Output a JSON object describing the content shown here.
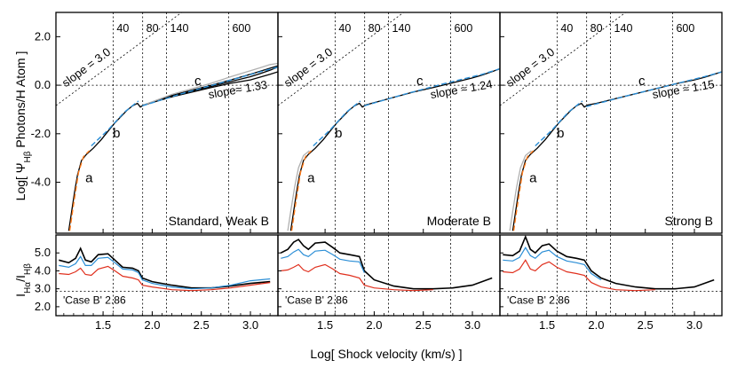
{
  "figure": {
    "ylabel_top": "Log[ Ψ",
    "ylabel_top_sub": "Hβ",
    "ylabel_top_tail": " Photons/H Atom ]",
    "ylabel_bottom": "I",
    "ylabel_bottom_sub1": "Hα",
    "ylabel_bottom_mid": "/I",
    "ylabel_bottom_sub2": "Hβ",
    "xlabel": "Log[ Shock velocity (km/s) ]"
  },
  "chart_data": [
    {
      "type": "line",
      "panel_title": "Standard, Weak B",
      "xlim": [
        1.02,
        3.28
      ],
      "ylim": [
        -6.1,
        3.0
      ],
      "yticks": [
        "2.0",
        "0.0",
        "-2.0",
        "-4.0"
      ],
      "xticks": [
        "1.5",
        "2.0",
        "2.5",
        "3.0"
      ],
      "velocity_markers": [
        {
          "log_v": 1.602,
          "label": "40"
        },
        {
          "log_v": 1.903,
          "label": "80"
        },
        {
          "log_v": 2.146,
          "label": "140"
        },
        {
          "log_v": 2.778,
          "label": "600"
        }
      ],
      "reference_line": {
        "label": "slope = 3.0",
        "slope": 3.0,
        "intercept": -3.9
      },
      "fit_labels": [
        "slope≈ 1.33"
      ],
      "segment_labels": [
        "a",
        "b",
        "c"
      ],
      "series": [
        {
          "name": "model",
          "color": "#000000",
          "x": [
            1.15,
            1.18,
            1.21,
            1.24,
            1.28,
            1.33,
            1.4,
            1.48,
            1.56,
            1.62,
            1.68,
            1.74,
            1.8,
            1.85,
            1.88,
            1.91,
            2.0,
            2.2,
            2.4,
            2.6,
            2.8,
            3.0,
            3.1,
            3.2,
            3.28
          ],
          "y": [
            -6.0,
            -5.2,
            -4.4,
            -3.7,
            -3.1,
            -2.85,
            -2.6,
            -2.25,
            -1.85,
            -1.55,
            -1.3,
            -1.05,
            -0.85,
            -0.75,
            -0.9,
            -0.82,
            -0.7,
            -0.45,
            -0.25,
            -0.05,
            0.15,
            0.35,
            0.48,
            0.62,
            0.75
          ]
        },
        {
          "name": "model (upper)",
          "color": "#000000",
          "x": [
            1.91,
            2.2,
            2.6,
            2.8,
            3.0,
            3.2,
            3.28
          ],
          "y": [
            -0.82,
            -0.42,
            0.0,
            0.22,
            0.45,
            0.7,
            0.8
          ]
        },
        {
          "name": "model (lower)",
          "color": "#000000",
          "x": [
            1.91,
            2.2,
            2.6,
            2.8,
            3.0,
            3.2,
            3.28
          ],
          "y": [
            -0.82,
            -0.48,
            -0.1,
            0.08,
            0.22,
            0.45,
            0.55
          ]
        },
        {
          "name": "gray",
          "color": "#b0b0b0",
          "x": [
            1.91,
            2.2,
            2.6,
            2.8,
            3.0,
            3.1,
            3.2,
            3.28
          ],
          "y": [
            -0.82,
            -0.38,
            0.08,
            0.35,
            0.6,
            0.72,
            0.85,
            0.9
          ]
        },
        {
          "name": "fit a",
          "color": "#ff7a1a",
          "dashed": true,
          "x": [
            1.16,
            1.2,
            1.25,
            1.3,
            1.36
          ],
          "y": [
            -6.0,
            -4.9,
            -3.6,
            -2.95,
            -2.7
          ]
        },
        {
          "name": "fit b",
          "color": "#2b8ed6",
          "dashed": true,
          "x": [
            1.38,
            1.55,
            1.72,
            1.86
          ],
          "y": [
            -2.5,
            -1.85,
            -1.1,
            -0.65
          ]
        },
        {
          "name": "fit c",
          "color": "#2b8ed6",
          "dashed": true,
          "x": [
            1.9,
            2.3,
            2.7,
            3.1,
            3.28
          ],
          "y": [
            -0.85,
            -0.35,
            0.1,
            0.55,
            0.75
          ]
        }
      ],
      "ratio": {
        "ylim": [
          1.5,
          6.0
        ],
        "yticks": [
          "5.0",
          "4.0",
          "3.0",
          "2.0"
        ],
        "case_b_value": 2.86,
        "case_b_label": "'Case B' 2.86",
        "series": [
          {
            "name": "ratio black",
            "color": "#000000",
            "x": [
              1.05,
              1.15,
              1.22,
              1.27,
              1.32,
              1.38,
              1.45,
              1.55,
              1.62,
              1.7,
              1.8,
              1.86,
              1.9,
              2.0,
              2.2,
              2.4,
              2.6,
              2.8,
              3.0,
              3.2
            ],
            "y": [
              4.6,
              4.45,
              4.7,
              5.25,
              4.6,
              4.5,
              4.9,
              4.95,
              4.6,
              4.2,
              4.15,
              4.0,
              3.6,
              3.4,
              3.2,
              3.05,
              3.05,
              3.15,
              3.3,
              3.4
            ]
          },
          {
            "name": "ratio blue",
            "color": "#2b8ed6",
            "x": [
              1.05,
              1.15,
              1.22,
              1.27,
              1.32,
              1.38,
              1.45,
              1.55,
              1.62,
              1.7,
              1.8,
              1.86,
              1.9,
              2.0,
              2.2,
              2.4,
              2.6,
              2.8,
              3.0,
              3.2
            ],
            "y": [
              4.3,
              4.2,
              4.4,
              4.8,
              4.3,
              4.3,
              4.7,
              4.75,
              4.45,
              4.1,
              4.05,
              3.9,
              3.5,
              3.3,
              3.1,
              3.0,
              3.05,
              3.2,
              3.45,
              3.55
            ]
          },
          {
            "name": "ratio red",
            "color": "#e0301e",
            "x": [
              1.05,
              1.15,
              1.22,
              1.27,
              1.32,
              1.38,
              1.45,
              1.55,
              1.62,
              1.7,
              1.8,
              1.86,
              1.9,
              2.0,
              2.2,
              2.4,
              2.6,
              2.8,
              3.0,
              3.2
            ],
            "y": [
              3.85,
              3.8,
              3.95,
              4.15,
              3.8,
              3.75,
              4.1,
              4.25,
              4.0,
              3.7,
              3.6,
              3.5,
              3.2,
              3.1,
              2.95,
              2.9,
              2.95,
              3.05,
              3.2,
              3.35
            ]
          }
        ]
      }
    },
    {
      "type": "line",
      "panel_title": "Moderate B",
      "xlim": [
        1.02,
        3.28
      ],
      "ylim": [
        -6.1,
        3.0
      ],
      "yticks": [],
      "xticks": [
        "1.5",
        "2.0",
        "2.5",
        "3.0"
      ],
      "velocity_markers": [
        {
          "log_v": 1.602,
          "label": "40"
        },
        {
          "log_v": 1.903,
          "label": "80"
        },
        {
          "log_v": 2.146,
          "label": "140"
        },
        {
          "log_v": 2.778,
          "label": "600"
        }
      ],
      "reference_line": {
        "label": "slope = 3.0",
        "slope": 3.0,
        "intercept": -3.9
      },
      "fit_labels": [
        "slope ≈ 1.24"
      ],
      "segment_labels": [
        "a",
        "b",
        "c"
      ],
      "series": [
        {
          "name": "model",
          "color": "#000000",
          "x": [
            1.15,
            1.18,
            1.21,
            1.24,
            1.28,
            1.33,
            1.4,
            1.48,
            1.56,
            1.62,
            1.68,
            1.74,
            1.8,
            1.85,
            1.88,
            1.91,
            2.0,
            2.2,
            2.4,
            2.6,
            2.8,
            3.0,
            3.1,
            3.2,
            3.28
          ],
          "y": [
            -6.0,
            -5.2,
            -4.4,
            -3.7,
            -3.1,
            -2.85,
            -2.6,
            -2.25,
            -1.85,
            -1.55,
            -1.3,
            -1.05,
            -0.85,
            -0.75,
            -0.9,
            -0.82,
            -0.72,
            -0.5,
            -0.28,
            -0.1,
            0.1,
            0.3,
            0.42,
            0.56,
            0.68
          ]
        },
        {
          "name": "gray",
          "color": "#b0b0b0",
          "x": [
            1.12,
            1.15,
            1.19,
            1.23,
            1.28,
            1.34
          ],
          "y": [
            -6.0,
            -5.2,
            -4.2,
            -3.4,
            -2.9,
            -2.7
          ]
        },
        {
          "name": "fit a",
          "color": "#ff7a1a",
          "dashed": true,
          "x": [
            1.16,
            1.2,
            1.25,
            1.3,
            1.36
          ],
          "y": [
            -6.0,
            -4.9,
            -3.6,
            -2.95,
            -2.7
          ]
        },
        {
          "name": "fit b",
          "color": "#2b8ed6",
          "dashed": true,
          "x": [
            1.38,
            1.55,
            1.72,
            1.86
          ],
          "y": [
            -2.5,
            -1.85,
            -1.1,
            -0.65
          ]
        },
        {
          "name": "fit c",
          "color": "#2b8ed6",
          "dashed": true,
          "x": [
            1.9,
            2.3,
            2.7,
            3.1,
            3.28
          ],
          "y": [
            -0.85,
            -0.38,
            0.05,
            0.45,
            0.68
          ]
        }
      ],
      "ratio": {
        "ylim": [
          1.5,
          6.0
        ],
        "yticks": [],
        "case_b_value": 2.86,
        "case_b_label": "'Case B' 2.86",
        "series": [
          {
            "name": "ratio black",
            "color": "#000000",
            "x": [
              1.05,
              1.12,
              1.18,
              1.23,
              1.28,
              1.33,
              1.4,
              1.5,
              1.58,
              1.65,
              1.75,
              1.85,
              1.9,
              2.0,
              2.2,
              2.4,
              2.6,
              2.8,
              3.0,
              3.2
            ],
            "y": [
              5.0,
              5.2,
              5.6,
              5.75,
              5.4,
              5.2,
              5.55,
              5.6,
              5.3,
              5.0,
              4.9,
              4.8,
              4.0,
              3.5,
              3.15,
              3.0,
              3.0,
              3.05,
              3.2,
              3.6
            ]
          },
          {
            "name": "ratio blue",
            "color": "#2b8ed6",
            "x": [
              1.05,
              1.12,
              1.18,
              1.23,
              1.28,
              1.33,
              1.4,
              1.5,
              1.58,
              1.65,
              1.75,
              1.85,
              1.9
            ],
            "y": [
              4.7,
              4.8,
              5.05,
              5.2,
              4.9,
              4.8,
              5.1,
              5.15,
              4.9,
              4.65,
              4.55,
              4.5,
              3.9
            ]
          },
          {
            "name": "ratio red",
            "color": "#e0301e",
            "x": [
              1.05,
              1.12,
              1.18,
              1.23,
              1.28,
              1.33,
              1.4,
              1.5,
              1.58,
              1.65,
              1.75,
              1.85,
              1.9,
              2.0,
              2.2,
              2.4,
              2.6
            ],
            "y": [
              4.0,
              4.05,
              4.2,
              4.35,
              4.05,
              3.95,
              4.2,
              4.35,
              4.1,
              3.85,
              3.75,
              3.6,
              3.2,
              3.05,
              2.95,
              2.9,
              2.95
            ]
          }
        ]
      }
    },
    {
      "type": "line",
      "panel_title": "Strong B",
      "xlim": [
        1.02,
        3.28
      ],
      "ylim": [
        -6.1,
        3.0
      ],
      "yticks": [],
      "xticks": [
        "1.5",
        "2.0",
        "2.5",
        "3.0"
      ],
      "velocity_markers": [
        {
          "log_v": 1.602,
          "label": "40"
        },
        {
          "log_v": 1.903,
          "label": "80"
        },
        {
          "log_v": 2.146,
          "label": "140"
        },
        {
          "log_v": 2.778,
          "label": "600"
        }
      ],
      "reference_line": {
        "label": "slope = 3.0",
        "slope": 3.0,
        "intercept": -3.9
      },
      "fit_labels": [
        "slope ≈ 1.15"
      ],
      "segment_labels": [
        "a",
        "b",
        "c"
      ],
      "series": [
        {
          "name": "model",
          "color": "#000000",
          "x": [
            1.15,
            1.18,
            1.21,
            1.24,
            1.28,
            1.33,
            1.4,
            1.48,
            1.56,
            1.62,
            1.68,
            1.74,
            1.8,
            1.85,
            1.88,
            1.91,
            2.0,
            2.2,
            2.4,
            2.6,
            2.8,
            3.0,
            3.1,
            3.2,
            3.28
          ],
          "y": [
            -6.0,
            -5.2,
            -4.4,
            -3.7,
            -3.1,
            -2.85,
            -2.6,
            -2.25,
            -1.85,
            -1.55,
            -1.3,
            -1.05,
            -0.85,
            -0.75,
            -0.9,
            -0.82,
            -0.75,
            -0.55,
            -0.35,
            -0.15,
            0.05,
            0.22,
            0.32,
            0.45,
            0.55
          ]
        },
        {
          "name": "gray",
          "color": "#b0b0b0",
          "x": [
            1.12,
            1.15,
            1.19,
            1.23,
            1.28,
            1.34
          ],
          "y": [
            -6.0,
            -5.2,
            -4.2,
            -3.4,
            -2.9,
            -2.7
          ]
        },
        {
          "name": "fit a",
          "color": "#ff7a1a",
          "dashed": true,
          "x": [
            1.16,
            1.2,
            1.25,
            1.3,
            1.36
          ],
          "y": [
            -6.0,
            -4.9,
            -3.6,
            -2.95,
            -2.7
          ]
        },
        {
          "name": "fit b",
          "color": "#2b8ed6",
          "dashed": true,
          "x": [
            1.38,
            1.55,
            1.72,
            1.86
          ],
          "y": [
            -2.5,
            -1.85,
            -1.1,
            -0.65
          ]
        },
        {
          "name": "fit c",
          "color": "#2b8ed6",
          "dashed": true,
          "x": [
            1.9,
            2.3,
            2.7,
            3.1,
            3.28
          ],
          "y": [
            -0.88,
            -0.45,
            -0.05,
            0.35,
            0.55
          ]
        }
      ],
      "ratio": {
        "ylim": [
          1.5,
          6.0
        ],
        "yticks": [],
        "case_b_value": 2.86,
        "case_b_label": "'Case B' 2.86",
        "series": [
          {
            "name": "ratio black",
            "color": "#000000",
            "x": [
              1.05,
              1.15,
              1.22,
              1.28,
              1.33,
              1.38,
              1.45,
              1.52,
              1.6,
              1.7,
              1.8,
              1.88,
              1.95,
              2.05,
              2.2,
              2.4,
              2.6,
              2.8,
              3.0,
              3.2
            ],
            "y": [
              4.9,
              4.85,
              5.1,
              5.9,
              5.2,
              5.0,
              5.4,
              5.5,
              5.1,
              4.8,
              4.7,
              4.6,
              4.0,
              3.6,
              3.3,
              3.1,
              3.0,
              3.0,
              3.1,
              3.5
            ]
          },
          {
            "name": "ratio blue",
            "color": "#2b8ed6",
            "x": [
              1.05,
              1.15,
              1.22,
              1.28,
              1.33,
              1.38,
              1.45,
              1.52,
              1.6,
              1.7,
              1.8,
              1.88,
              1.95,
              2.05
            ],
            "y": [
              4.6,
              4.55,
              4.75,
              5.3,
              4.85,
              4.7,
              5.05,
              5.15,
              4.8,
              4.55,
              4.45,
              4.35,
              3.85,
              3.5
            ]
          },
          {
            "name": "ratio red",
            "color": "#e0301e",
            "x": [
              1.05,
              1.15,
              1.22,
              1.28,
              1.33,
              1.38,
              1.45,
              1.52,
              1.6,
              1.7,
              1.8,
              1.88,
              1.95,
              2.05,
              2.2,
              2.4,
              2.6
            ],
            "y": [
              3.95,
              3.9,
              4.1,
              4.6,
              4.1,
              4.0,
              4.35,
              4.5,
              4.2,
              3.95,
              3.85,
              3.75,
              3.35,
              3.1,
              2.95,
              2.9,
              2.95
            ]
          }
        ]
      }
    }
  ]
}
